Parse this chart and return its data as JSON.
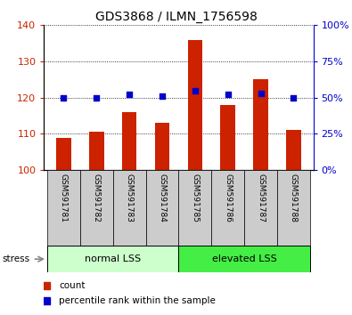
{
  "title": "GDS3868 / ILMN_1756598",
  "samples": [
    "GSM591781",
    "GSM591782",
    "GSM591783",
    "GSM591784",
    "GSM591785",
    "GSM591786",
    "GSM591787",
    "GSM591788"
  ],
  "counts": [
    109,
    110.5,
    116,
    113,
    136,
    118,
    125,
    111
  ],
  "percentiles": [
    50,
    50,
    52,
    51,
    55,
    52,
    53,
    50
  ],
  "baseline": 100,
  "ylim_left": [
    100,
    140
  ],
  "ylim_right": [
    0,
    100
  ],
  "yticks_left": [
    100,
    110,
    120,
    130,
    140
  ],
  "yticks_right": [
    0,
    25,
    50,
    75,
    100
  ],
  "bar_color": "#cc2200",
  "dot_color": "#0000cc",
  "group1_label": "normal LSS",
  "group2_label": "elevated LSS",
  "group1_color": "#ccffcc",
  "group2_color": "#44ee44",
  "group1_indices": [
    0,
    1,
    2,
    3
  ],
  "group2_indices": [
    4,
    5,
    6,
    7
  ],
  "stress_label": "stress",
  "legend_count": "count",
  "legend_percentile": "percentile rank within the sample",
  "xlabel_bg": "#cccccc",
  "title_fontsize": 10,
  "tick_fontsize": 8,
  "label_fontsize": 8
}
